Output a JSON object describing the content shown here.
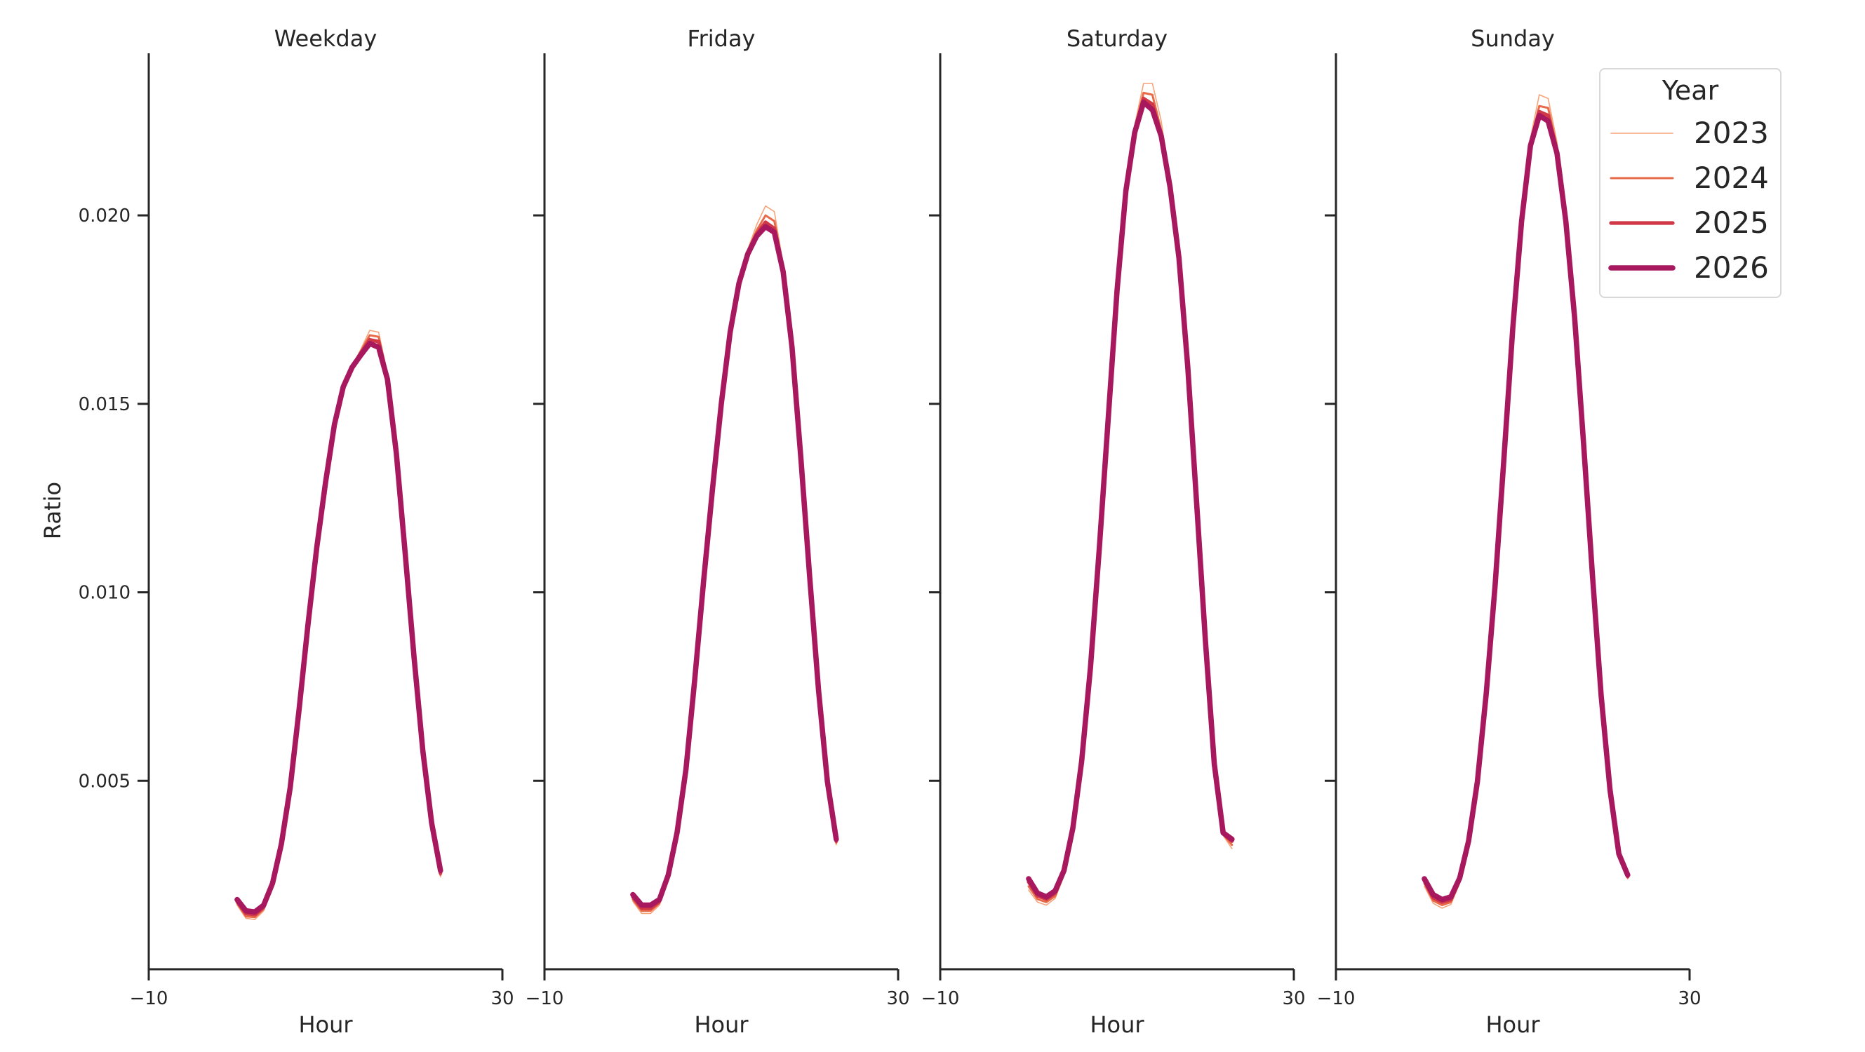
{
  "chart_data": {
    "type": "line",
    "facet_titles": [
      "Weekday",
      "Friday",
      "Saturday",
      "Sunday"
    ],
    "xlabel": "Hour",
    "ylabel": "Ratio",
    "xlim": [
      -10,
      30
    ],
    "ylim": [
      0,
      0.0243
    ],
    "x_ticks": [
      "−10",
      "30"
    ],
    "y_ticks": [
      "0.005",
      "0.010",
      "0.015",
      "0.020"
    ],
    "y_tick_values": [
      0.005,
      0.01,
      0.015,
      0.02
    ],
    "legend_title": "Year",
    "legend_position": "top-right",
    "series_names": [
      "2023",
      "2024",
      "2025",
      "2026"
    ],
    "colors": [
      "#f7a37a",
      "#e96a48",
      "#d03848",
      "#a8185f"
    ],
    "x": [
      0,
      1,
      2,
      3,
      4,
      5,
      6,
      7,
      8,
      9,
      10,
      11,
      12,
      13,
      14,
      15,
      16,
      17,
      18,
      19,
      20,
      21,
      22,
      23
    ],
    "panels": [
      {
        "name": "Weekday",
        "series": [
          {
            "name": "2023",
            "values": [
              0.0017,
              0.00135,
              0.00132,
              0.00155,
              0.0022,
              0.00325,
              0.00475,
              0.0068,
              0.00905,
              0.0111,
              0.01285,
              0.01445,
              0.01545,
              0.016,
              0.01645,
              0.01695,
              0.0169,
              0.0158,
              0.0138,
              0.0111,
              0.0083,
              0.00575,
              0.0038,
              0.00245
            ]
          },
          {
            "name": "2024",
            "values": [
              0.00175,
              0.0014,
              0.00138,
              0.0016,
              0.00222,
              0.00327,
              0.00478,
              0.00683,
              0.00908,
              0.01113,
              0.01288,
              0.01448,
              0.01545,
              0.016,
              0.0164,
              0.01682,
              0.01678,
              0.01575,
              0.01375,
              0.01108,
              0.0083,
              0.00577,
              0.00382,
              0.0025
            ]
          },
          {
            "name": "2025",
            "values": [
              0.0018,
              0.00148,
              0.00145,
              0.00165,
              0.00225,
              0.0033,
              0.0048,
              0.00685,
              0.0091,
              0.01115,
              0.0129,
              0.01445,
              0.01545,
              0.01598,
              0.01635,
              0.0167,
              0.01665,
              0.0157,
              0.01372,
              0.01105,
              0.0083,
              0.00578,
              0.00385,
              0.00255
            ]
          },
          {
            "name": "2026",
            "values": [
              0.00185,
              0.00155,
              0.00152,
              0.0017,
              0.00228,
              0.00332,
              0.00482,
              0.00688,
              0.00912,
              0.01118,
              0.01292,
              0.01445,
              0.01545,
              0.01597,
              0.0163,
              0.0166,
              0.0165,
              0.01565,
              0.0137,
              0.01105,
              0.0083,
              0.0058,
              0.00388,
              0.00262
            ]
          }
        ]
      },
      {
        "name": "Friday",
        "series": [
          {
            "name": "2023",
            "values": [
              0.0018,
              0.00148,
              0.00148,
              0.0017,
              0.0024,
              0.00355,
              0.0052,
              0.0076,
              0.0102,
              0.01265,
              0.01495,
              0.0169,
              0.0182,
              0.0191,
              0.01975,
              0.02025,
              0.0201,
              0.0187,
              0.0166,
              0.0136,
              0.0104,
              0.00735,
              0.0049,
              0.0033
            ]
          },
          {
            "name": "2024",
            "values": [
              0.00185,
              0.00155,
              0.00155,
              0.00175,
              0.00243,
              0.00358,
              0.00523,
              0.00763,
              0.01023,
              0.01268,
              0.01498,
              0.0169,
              0.01818,
              0.01905,
              0.0196,
              0.02,
              0.01985,
              0.0186,
              0.01655,
              0.01358,
              0.0104,
              0.00737,
              0.00493,
              0.00335
            ]
          },
          {
            "name": "2025",
            "values": [
              0.00192,
              0.00162,
              0.00162,
              0.0018,
              0.00246,
              0.0036,
              0.00526,
              0.00766,
              0.01026,
              0.0127,
              0.015,
              0.0169,
              0.01818,
              0.019,
              0.0195,
              0.01982,
              0.01965,
              0.01855,
              0.01652,
              0.01357,
              0.0104,
              0.00738,
              0.00496,
              0.0034
            ]
          },
          {
            "name": "2026",
            "values": [
              0.00198,
              0.0017,
              0.0017,
              0.00185,
              0.0025,
              0.00363,
              0.0053,
              0.0077,
              0.0103,
              0.01273,
              0.015,
              0.0169,
              0.0182,
              0.01898,
              0.01945,
              0.0197,
              0.01955,
              0.0185,
              0.0165,
              0.01356,
              0.0104,
              0.0074,
              0.00498,
              0.00345
            ]
          }
        ]
      },
      {
        "name": "Saturday",
        "series": [
          {
            "name": "2023",
            "values": [
              0.0021,
              0.00178,
              0.0017,
              0.00188,
              0.00248,
              0.00365,
              0.00545,
              0.00795,
              0.0111,
              0.0146,
              0.0181,
              0.0208,
              0.0224,
              0.0235,
              0.0235,
              0.0225,
              0.0209,
              0.019,
              0.0161,
              0.0124,
              0.0087,
              0.0054,
              0.00355,
              0.0032
            ]
          },
          {
            "name": "2024",
            "values": [
              0.0022,
              0.00186,
              0.00178,
              0.00194,
              0.00252,
              0.00368,
              0.00548,
              0.00798,
              0.01112,
              0.0146,
              0.01805,
              0.0207,
              0.0223,
              0.02325,
              0.0232,
              0.02225,
              0.0208,
              0.01895,
              0.01605,
              0.0124,
              0.0087,
              0.0054,
              0.00358,
              0.0033
            ]
          },
          {
            "name": "2025",
            "values": [
              0.00232,
              0.00195,
              0.00186,
              0.00202,
              0.00257,
              0.00371,
              0.0055,
              0.008,
              0.01115,
              0.0146,
              0.018,
              0.02065,
              0.02222,
              0.0231,
              0.02295,
              0.0221,
              0.02078,
              0.0189,
              0.016,
              0.01238,
              0.0087,
              0.00543,
              0.0036,
              0.0034
            ]
          },
          {
            "name": "2026",
            "values": [
              0.0024,
              0.00202,
              0.00192,
              0.00208,
              0.00262,
              0.00374,
              0.00552,
              0.00802,
              0.01118,
              0.0146,
              0.018,
              0.02065,
              0.0222,
              0.023,
              0.0228,
              0.0221,
              0.02075,
              0.01888,
              0.01598,
              0.01238,
              0.0087,
              0.00545,
              0.00362,
              0.00345
            ]
          }
        ]
      },
      {
        "name": "Sunday",
        "series": [
          {
            "name": "2023",
            "values": [
              0.0022,
              0.00175,
              0.00162,
              0.00172,
              0.00228,
              0.0033,
              0.0049,
              0.00725,
              0.0101,
              0.0135,
              0.017,
              0.01995,
              0.02205,
              0.0232,
              0.0231,
              0.02195,
              0.01995,
              0.01735,
              0.014,
              0.0105,
              0.0072,
              0.0047,
              0.003,
              0.0024
            ]
          },
          {
            "name": "2024",
            "values": [
              0.00228,
              0.00182,
              0.0017,
              0.00178,
              0.00232,
              0.00333,
              0.00493,
              0.00728,
              0.01012,
              0.01352,
              0.017,
              0.0199,
              0.02195,
              0.0229,
              0.02285,
              0.0218,
              0.0199,
              0.01732,
              0.01398,
              0.0105,
              0.00722,
              0.00472,
              0.00302,
              0.00243
            ]
          },
          {
            "name": "2025",
            "values": [
              0.00235,
              0.0019,
              0.00178,
              0.00185,
              0.00238,
              0.00337,
              0.00496,
              0.0073,
              0.01015,
              0.01353,
              0.017,
              0.01985,
              0.02188,
              0.02275,
              0.02265,
              0.0217,
              0.01988,
              0.0173,
              0.01398,
              0.0105,
              0.00724,
              0.00474,
              0.00304,
              0.00246
            ]
          },
          {
            "name": "2026",
            "values": [
              0.0024,
              0.00198,
              0.00185,
              0.00192,
              0.00242,
              0.0034,
              0.00498,
              0.00732,
              0.01018,
              0.01355,
              0.017,
              0.01985,
              0.02185,
              0.02265,
              0.0225,
              0.02165,
              0.01985,
              0.01728,
              0.01398,
              0.0105,
              0.00725,
              0.00476,
              0.00306,
              0.0025
            ]
          }
        ]
      }
    ]
  }
}
